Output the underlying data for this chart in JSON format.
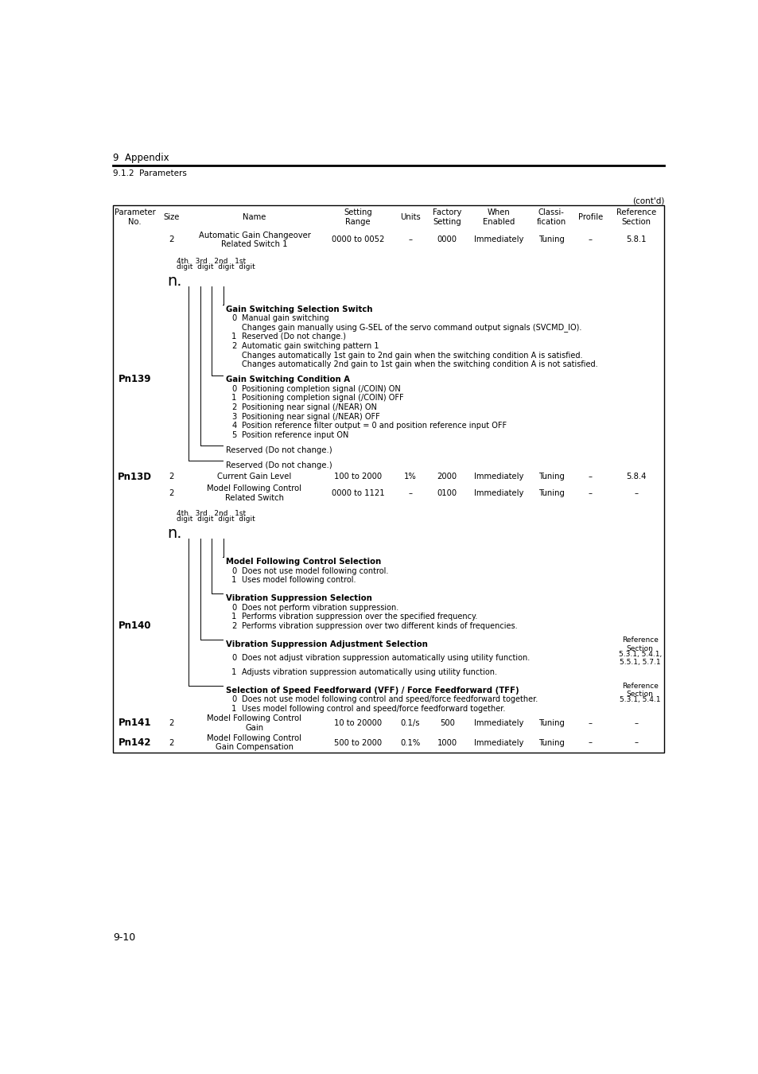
{
  "page_title": "9  Appendix",
  "section_title": "9.1.2  Parameters",
  "contd": "(cont'd)",
  "page_number": "9-10",
  "bg_header": "#c8c8c8",
  "bg_subheader": "#c8c8c8",
  "bg_white": "#ffffff",
  "col_lefts": [
    30,
    100,
    148,
    370,
    484,
    539,
    604,
    706,
    775,
    833
  ],
  "col_rights": [
    100,
    148,
    370,
    484,
    539,
    604,
    706,
    775,
    833,
    924
  ],
  "header_labels": [
    "Parameter\nNo.",
    "Size",
    "Name",
    "Setting\nRange",
    "Units",
    "Factory\nSetting",
    "When\nEnabled",
    "Classi-\nfication",
    "Profile",
    "Reference\nSection"
  ]
}
